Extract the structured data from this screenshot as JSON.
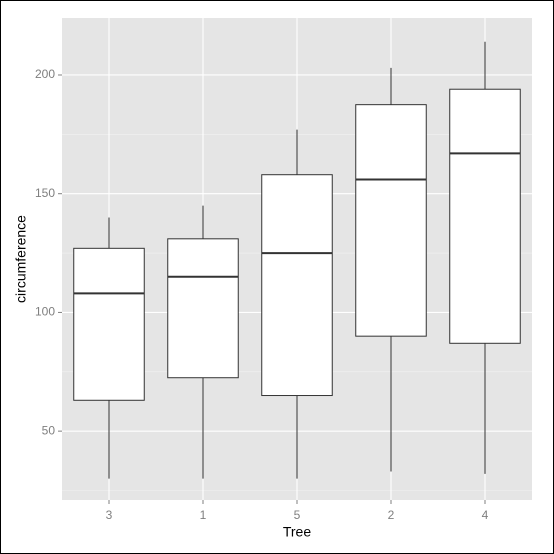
{
  "chart_data": {
    "type": "boxplot",
    "x_label": "Tree",
    "y_label": "circumference",
    "categories": [
      "3",
      "1",
      "5",
      "2",
      "4"
    ],
    "min": [
      30,
      30,
      30,
      33,
      32
    ],
    "q1": [
      63,
      72.5,
      65,
      90,
      87
    ],
    "median": [
      108,
      115,
      125,
      156,
      167
    ],
    "q3": [
      127,
      131,
      158,
      187.5,
      194
    ],
    "max": [
      140,
      145,
      177,
      203,
      214
    ],
    "ylim": [
      21,
      224
    ],
    "yticks": [
      50,
      100,
      150,
      200
    ],
    "grid": true,
    "box_fill": "#ffffff",
    "line_color": "#333333",
    "panel_color": "#e5e5e5"
  }
}
